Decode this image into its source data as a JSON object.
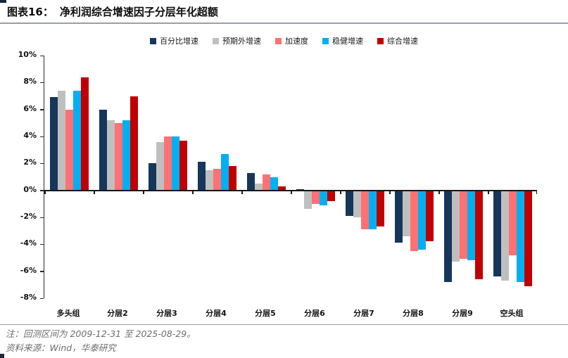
{
  "header": {
    "figure_label": "图表16：",
    "title": "净利润综合增速因子分层年化超额"
  },
  "chart_data": {
    "type": "bar",
    "title": "净利润综合增速因子分层年化超额",
    "xlabel": "",
    "ylabel": "",
    "ylim": [
      -8,
      10
    ],
    "ytick_step": 2,
    "y_tick_labels": [
      "10%",
      "8%",
      "6%",
      "4%",
      "2%",
      "0%",
      "-2%",
      "-4%",
      "-6%",
      "-8%"
    ],
    "grid": false,
    "legend_position": "top",
    "categories": [
      "多头组",
      "分层2",
      "分层3",
      "分层4",
      "分层5",
      "分层6",
      "分层7",
      "分层8",
      "分层9",
      "空头组"
    ],
    "series": [
      {
        "name": "百分比增速",
        "color": "#16365C",
        "values": [
          6.9,
          6.0,
          2.0,
          2.1,
          1.3,
          0.1,
          -1.9,
          -3.9,
          -6.8,
          -6.4
        ]
      },
      {
        "name": "预期外增速",
        "color": "#BFBFBF",
        "values": [
          7.4,
          5.2,
          3.6,
          1.5,
          0.5,
          -1.4,
          -2.0,
          -3.4,
          -5.3,
          -6.7
        ]
      },
      {
        "name": "加速度",
        "color": "#FF7173",
        "values": [
          6.0,
          5.0,
          4.0,
          1.6,
          1.2,
          -1.0,
          -2.9,
          -4.5,
          -5.1,
          -4.8
        ]
      },
      {
        "name": "稳健增速",
        "color": "#00B0F0",
        "values": [
          7.4,
          5.2,
          4.0,
          2.7,
          1.0,
          -1.1,
          -2.9,
          -4.4,
          -5.2,
          -6.8
        ]
      },
      {
        "name": "综合增速",
        "color": "#C00000",
        "values": [
          8.4,
          7.0,
          3.7,
          1.8,
          0.3,
          -0.8,
          -2.7,
          -3.8,
          -6.6,
          -7.1
        ]
      }
    ]
  },
  "colors": {
    "axis": "#161616",
    "header_rule": "#97a0aa",
    "footnote_text": "#6e6e6e"
  },
  "footnotes": {
    "note": "注：回测区间为 2009-12-31 至 2025-08-29。",
    "source": "资料来源：Wind，华泰研究"
  }
}
